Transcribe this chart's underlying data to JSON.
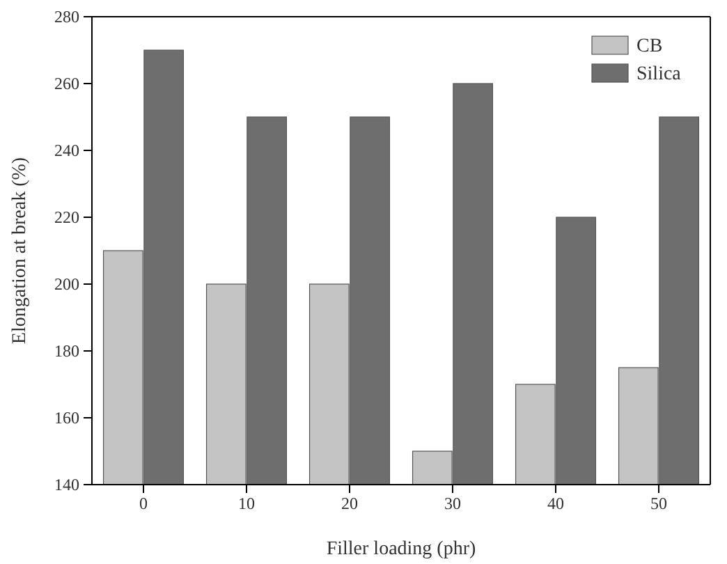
{
  "chart_data": {
    "type": "bar",
    "xlabel": "Filler loading (phr)",
    "ylabel": "Elongation at break (%)",
    "categories": [
      "0",
      "10",
      "20",
      "30",
      "40",
      "50"
    ],
    "series": [
      {
        "name": "CB",
        "color": "#c4c4c4",
        "values": [
          210,
          200,
          200,
          150,
          170,
          175
        ]
      },
      {
        "name": "Silica",
        "color": "#6e6e6e",
        "values": [
          270,
          250,
          250,
          260,
          220,
          250
        ]
      }
    ],
    "ylim": [
      140,
      280
    ],
    "yticks": [
      140,
      160,
      180,
      200,
      220,
      240,
      260,
      280
    ],
    "legend": "top right"
  }
}
